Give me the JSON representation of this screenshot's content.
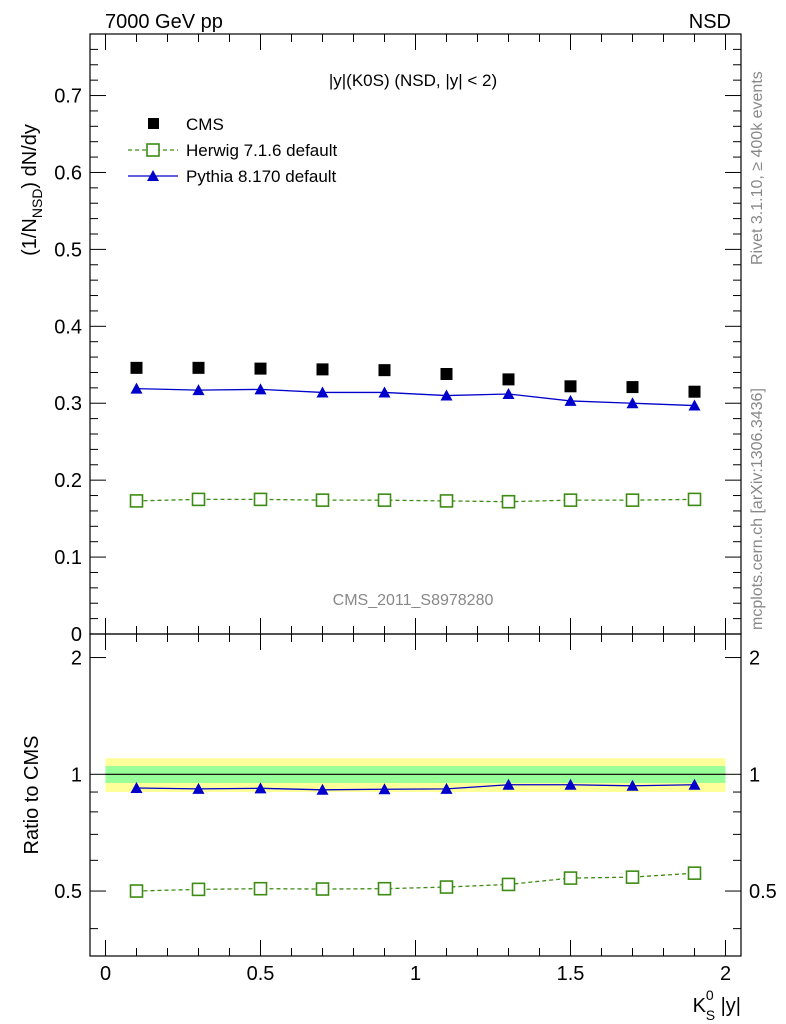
{
  "header": {
    "left": "7000 GeV pp",
    "right": "NSD"
  },
  "side": {
    "rivet": "Rivet 3.1.10, ≥ 400k events",
    "source": "mcplots.cern.ch [arXiv:1306.3436]"
  },
  "watermark": "CMS_2011_S8978280",
  "colors": {
    "cms": "#000000",
    "herwig": "#3c8c14",
    "pythia": "#0000cc",
    "band_inner": "#99ff99",
    "band_outer": "#ffff99"
  },
  "chart_data": [
    {
      "type": "scatter",
      "panel": "main",
      "title": "|y|(K0S) (NSD, |y| < 2)",
      "ylabel": "(1/N_NSD) dN/dy",
      "ylabel_parts": {
        "pre": "(1/N",
        "sub": "NSD",
        "post": ") dN/dy"
      },
      "ylim": [
        0,
        0.78
      ],
      "xlim": [
        -0.05,
        2.05
      ],
      "yticks": [
        "0",
        "0.1",
        "0.2",
        "0.3",
        "0.4",
        "0.5",
        "0.6",
        "0.7"
      ],
      "x": [
        0.1,
        0.3,
        0.5,
        0.7,
        0.9,
        1.1,
        1.3,
        1.5,
        1.7,
        1.9
      ],
      "series": [
        {
          "name": "CMS",
          "style": "markers",
          "values": [
            0.346,
            0.346,
            0.345,
            0.344,
            0.343,
            0.338,
            0.331,
            0.322,
            0.321,
            0.315
          ]
        },
        {
          "name": "Herwig 7.1.6 default",
          "style": "dashed-open-square",
          "values": [
            0.173,
            0.175,
            0.175,
            0.174,
            0.174,
            0.173,
            0.172,
            0.174,
            0.174,
            0.175
          ]
        },
        {
          "name": "Pythia 8.170 default",
          "style": "solid-triangle",
          "values": [
            0.319,
            0.317,
            0.318,
            0.314,
            0.314,
            0.31,
            0.312,
            0.303,
            0.3,
            0.297
          ]
        }
      ],
      "legend": [
        "CMS",
        "Herwig 7.1.6 default",
        "Pythia 8.170 default"
      ]
    },
    {
      "type": "line",
      "panel": "ratio",
      "ylabel": "Ratio to CMS",
      "xlabel": "K_S^0 |y|",
      "xlabel_parts": {
        "main": "K",
        "sup": "0",
        "sub": "S",
        "post": " |y|"
      },
      "ylim": [
        0.34,
        2.3
      ],
      "xlim": [
        -0.05,
        2.05
      ],
      "yticks": [
        "0.5",
        "1",
        "2"
      ],
      "xticks": [
        "0",
        "0.5",
        "1",
        "1.5",
        "2"
      ],
      "band_inner": [
        0.95,
        1.05
      ],
      "band_outer": [
        0.9,
        1.1
      ],
      "x": [
        0.1,
        0.3,
        0.5,
        0.7,
        0.9,
        1.1,
        1.3,
        1.5,
        1.7,
        1.9
      ],
      "series": [
        {
          "name": "Herwig 7.1.6 default",
          "values": [
            0.5,
            0.505,
            0.507,
            0.506,
            0.507,
            0.512,
            0.52,
            0.54,
            0.543,
            0.556
          ]
        },
        {
          "name": "Pythia 8.170 default",
          "values": [
            0.922,
            0.917,
            0.92,
            0.912,
            0.915,
            0.917,
            0.94,
            0.94,
            0.934,
            0.94
          ]
        }
      ]
    }
  ]
}
